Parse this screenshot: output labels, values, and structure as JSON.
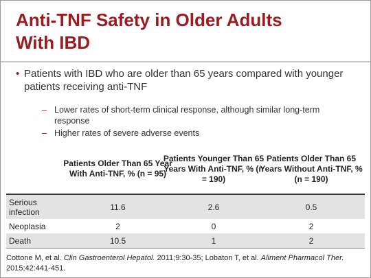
{
  "title_line1": "Anti-TNF Safety in Older Adults",
  "title_line2": "With IBD",
  "bullet": {
    "marker": "•",
    "text": "Patients with IBD who are older than 65 years compared with younger patients receiving anti-TNF"
  },
  "subbullets": [
    {
      "marker": "–",
      "text": "Lower rates of short-term clinical response, although similar long-term response"
    },
    {
      "marker": "–",
      "text": "Higher rates of severe adverse events"
    }
  ],
  "table": {
    "headers": [
      "Patients Older Than 65 Year With Anti-TNF, % (n = 95)",
      "Patients Younger Than 65 Years With Anti-TNF, % (n = 190)",
      "Patients Older Than 65 Years Without Anti-TNF, % (n = 190)"
    ],
    "rows": [
      {
        "label": "Serious infection",
        "values": [
          "11.6",
          "2.6",
          "0.5"
        ]
      },
      {
        "label": "Neoplasia",
        "values": [
          "2",
          "0",
          "2"
        ]
      },
      {
        "label": "Death",
        "values": [
          "10.5",
          "1",
          "2"
        ]
      }
    ]
  },
  "citation": {
    "part1": "Cottone M, et al. ",
    "journal1": "Clin Gastroenterol Hepatol.",
    "part2": " 2011;9:30-35; Lobaton T, et al. ",
    "journal2": "Aliment Pharmacol Ther.",
    "part3": " 2015;42:441-451."
  },
  "colors": {
    "title": "#9b1c20",
    "accent": "#9b1c20",
    "row_shade": "#e3e3e3"
  }
}
